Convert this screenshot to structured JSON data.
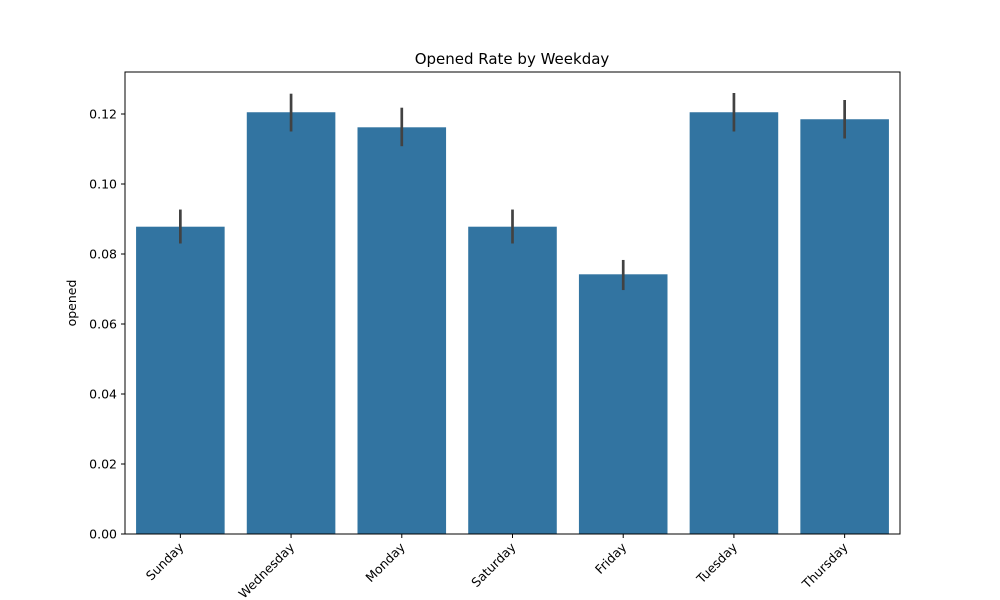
{
  "chart_data": {
    "type": "bar",
    "title": "Opened Rate by Weekday",
    "xlabel": "",
    "ylabel": "opened",
    "categories": [
      "Sunday",
      "Wednesday",
      "Monday",
      "Saturday",
      "Friday",
      "Tuesday",
      "Thursday"
    ],
    "values": [
      0.0878,
      0.1205,
      0.1162,
      0.0878,
      0.0742,
      0.1205,
      0.1185
    ],
    "error_low": [
      0.083,
      0.115,
      0.1108,
      0.083,
      0.0697,
      0.115,
      0.113
    ],
    "error_high": [
      0.0927,
      0.1258,
      0.1218,
      0.0927,
      0.0783,
      0.126,
      0.124
    ],
    "ylim": [
      0,
      0.132
    ],
    "yticks": [
      "0.00",
      "0.02",
      "0.04",
      "0.06",
      "0.08",
      "0.10",
      "0.12"
    ],
    "ytick_values": [
      0,
      0.02,
      0.04,
      0.06,
      0.08,
      0.1,
      0.12
    ],
    "bar_color": "#3274a1",
    "error_color": "#424242",
    "grid": false,
    "legend": "none"
  }
}
